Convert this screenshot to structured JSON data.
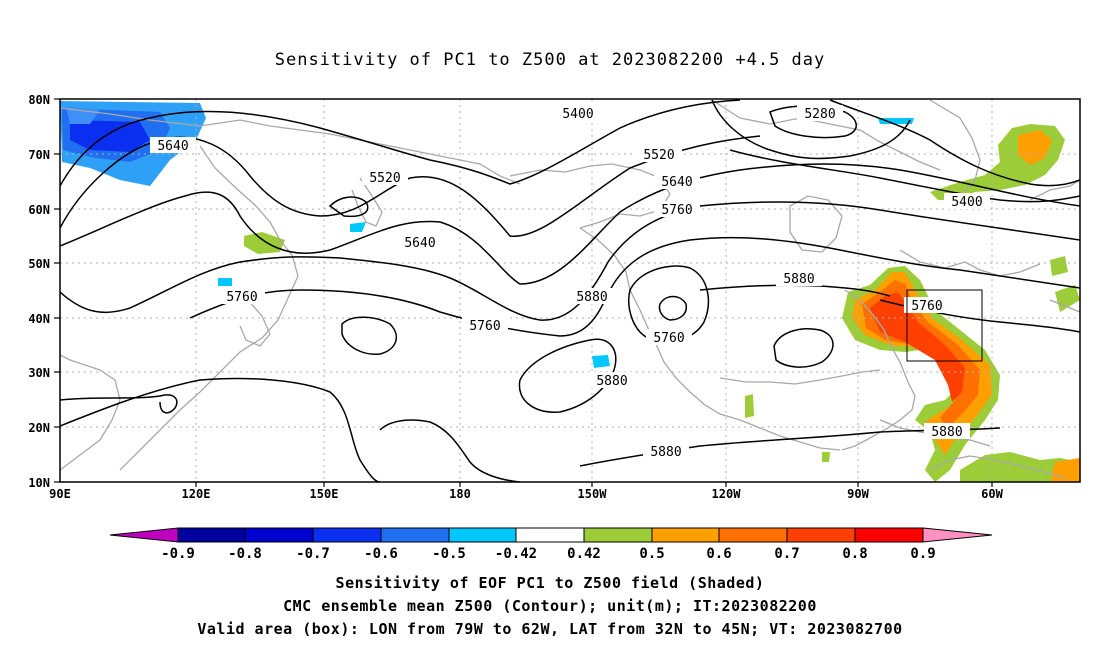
{
  "title": "Sensitivity of PC1 to Z500 at 2023082200 +4.5 day",
  "map": {
    "lat_labels": [
      "80N",
      "70N",
      "60N",
      "50N",
      "40N",
      "30N",
      "20N",
      "10N"
    ],
    "lon_labels": [
      "90E",
      "120E",
      "150E",
      "180",
      "150W",
      "120W",
      "90W",
      "60W"
    ],
    "contour_labels": [
      "5400",
      "5280",
      "5640",
      "5520",
      "5520",
      "5640",
      "5760",
      "5400",
      "5640",
      "5760",
      "5880",
      "5880",
      "5760",
      "5760",
      "5760",
      "5880",
      "5880",
      "5880"
    ],
    "valid_box": {
      "lon_from": "79W",
      "lon_to": "62W",
      "lat_from": "32N",
      "lat_to": "45N"
    }
  },
  "colorbar": {
    "labels": [
      "-0.9",
      "-0.8",
      "-0.7",
      "-0.6",
      "-0.5",
      "-0.42",
      "0.42",
      "0.5",
      "0.6",
      "0.7",
      "0.8",
      "0.9"
    ],
    "colors": [
      "#c000c0",
      "#0000a0",
      "#0000d0",
      "#0a2ff0",
      "#1f6ff0",
      "#2fa0f8",
      "#00c8ff",
      "#ffffff",
      "#9ccc38",
      "#ffa000",
      "#ff7000",
      "#ff4000",
      "#ff0000",
      "#ff90c0"
    ]
  },
  "captions": {
    "line1": "Sensitivity of EOF PC1 to Z500 field (Shaded)",
    "line2": "CMC ensemble mean Z500 (Contour); unit(m); IT:2023082200",
    "line3": "Valid area (box): LON from 79W to 62W, LAT from 32N to 45N; VT: 2023082700"
  }
}
